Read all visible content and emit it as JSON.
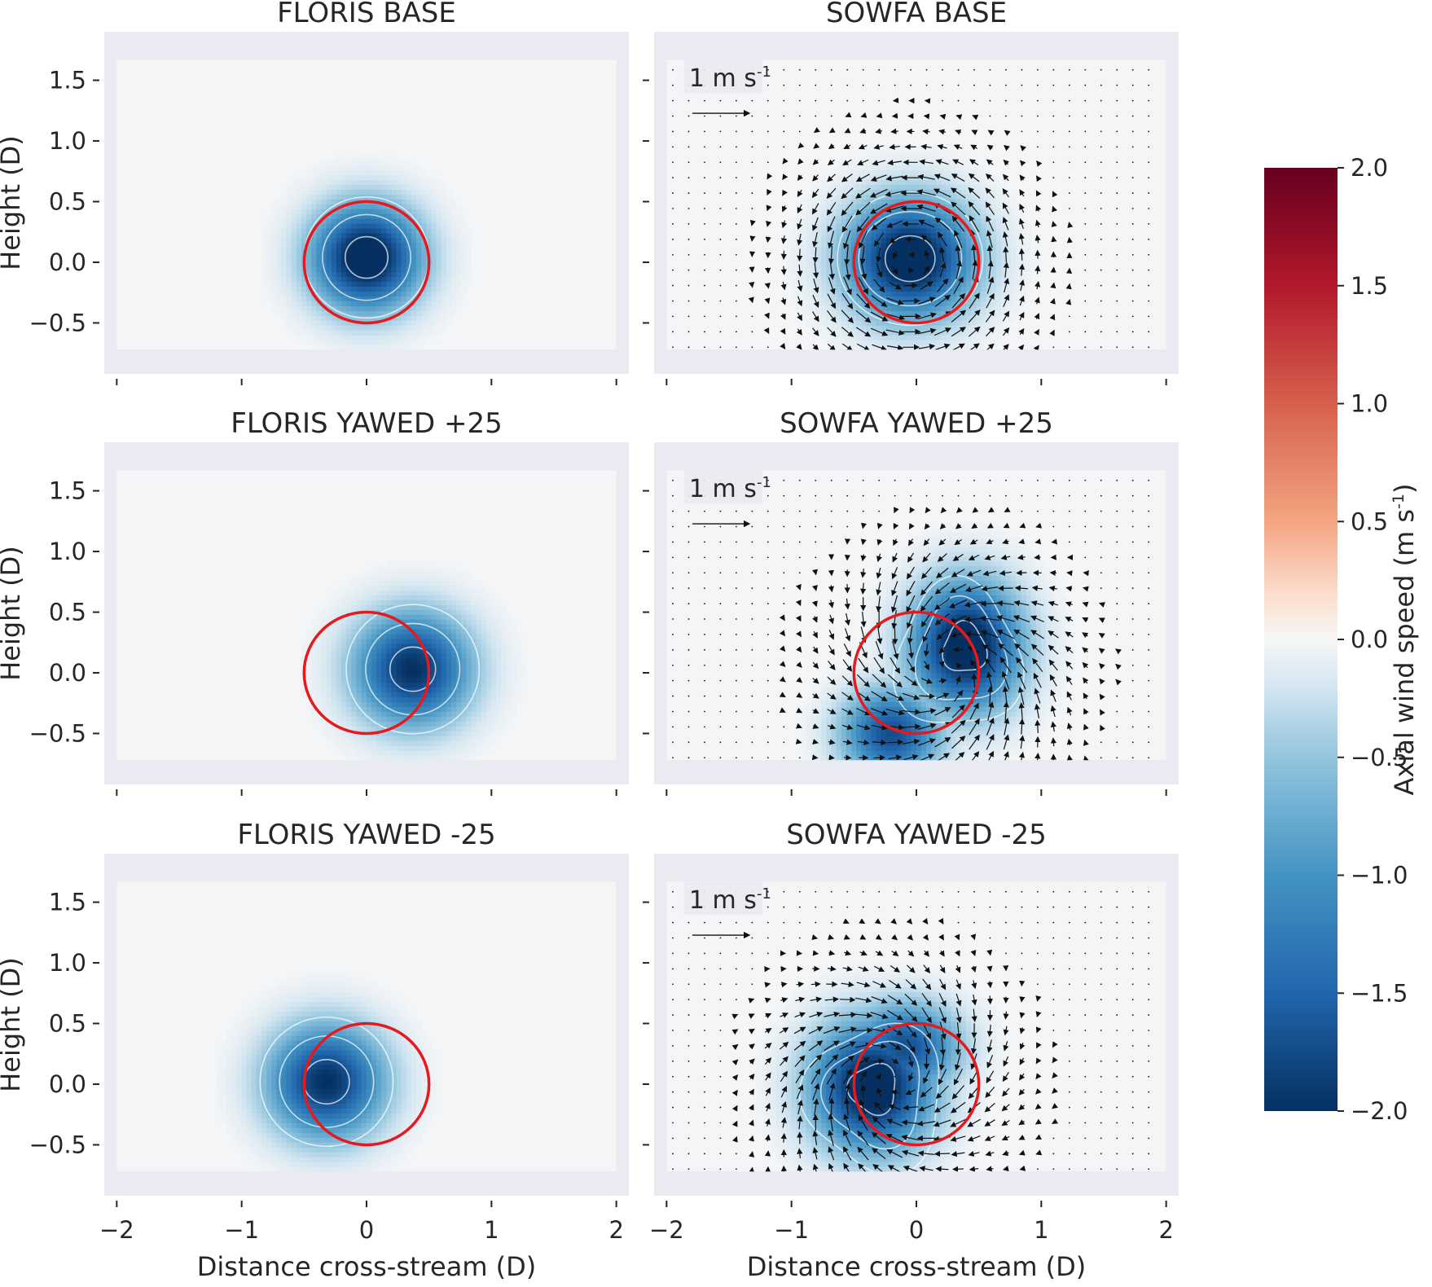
{
  "chart_data": {
    "type": "heatmap",
    "description_free": true,
    "colormap": "RdBu_r",
    "x_range": [
      -2.1,
      2.1
    ],
    "y_range": [
      -0.92,
      1.9
    ],
    "xticks": [
      -2,
      -1,
      0,
      1,
      2
    ],
    "xtick_labels": [
      "−2",
      "−1",
      "0",
      "1",
      "2"
    ],
    "yticks": [
      1.5,
      1.0,
      0.5,
      0.0,
      -0.5
    ],
    "ytick_labels": [
      "1.5",
      "1.0",
      "0.5",
      "0.0",
      "−0.5"
    ],
    "ylabel": "Height (D)",
    "xlabel": "Distance cross-stream (D)",
    "domain_x": [
      -2.0,
      2.0
    ],
    "domain_y": [
      -0.72,
      1.67
    ],
    "rotor_radius": 0.5,
    "contour_fractions": [
      0.25,
      0.5,
      0.85
    ],
    "panels": [
      {
        "id": "floris-base",
        "title": "FLORIS BASE",
        "row": 0,
        "col": 0,
        "rotor_center": [
          0,
          0
        ],
        "wake": {
          "kind": "gauss",
          "cx": 0.0,
          "cy": 0.04,
          "sx": 0.3,
          "sy": 0.3,
          "amp": -2.3,
          "plateau": 0.2
        }
      },
      {
        "id": "sowfa-base",
        "title": "SOWFA BASE",
        "row": 0,
        "col": 1,
        "rotor_center": [
          0,
          0
        ],
        "wake": {
          "kind": "gauss",
          "cx": -0.05,
          "cy": 0.03,
          "sx": 0.35,
          "sy": 0.33,
          "amp": -2.3,
          "plateau": 0.22
        },
        "quiver": {
          "label": "1 m s",
          "label_sup": "-1",
          "swirl": 1.1,
          "swirl_center": [
            -0.05,
            0.02
          ],
          "sink": 0.0
        }
      },
      {
        "id": "floris-yawed-plus25",
        "title": "FLORIS YAWED +25",
        "row": 1,
        "col": 0,
        "rotor_center": [
          0,
          0
        ],
        "wake": {
          "kind": "gauss",
          "cx": 0.37,
          "cy": 0.03,
          "sx": 0.32,
          "sy": 0.32,
          "amp": -2.0,
          "plateau": 0.08
        }
      },
      {
        "id": "sowfa-yawed-plus25",
        "title": "SOWFA YAWED +25",
        "row": 1,
        "col": 1,
        "rotor_center": [
          0,
          0
        ],
        "wake": {
          "kind": "kidney",
          "cx": 0.4,
          "cy": 0.22,
          "sx": 0.3,
          "sy": 0.36,
          "amp": -2.3,
          "tail_cx": -0.2,
          "tail_cy": -0.5,
          "plateau": 0.12
        },
        "quiver": {
          "label": "1 m s",
          "label_sup": "-1",
          "swirl": 0.9,
          "swirl_center": [
            0.25,
            0.05
          ],
          "sink": 0.55
        }
      },
      {
        "id": "floris-yawed-minus25",
        "title": "FLORIS YAWED -25",
        "row": 2,
        "col": 0,
        "rotor_center": [
          0,
          0
        ],
        "wake": {
          "kind": "gauss",
          "cx": -0.32,
          "cy": 0.02,
          "sx": 0.32,
          "sy": 0.32,
          "amp": -2.0,
          "plateau": 0.08
        }
      },
      {
        "id": "sowfa-yawed-minus25",
        "title": "SOWFA YAWED -25",
        "row": 2,
        "col": 1,
        "rotor_center": [
          0,
          0
        ],
        "wake": {
          "kind": "kidney",
          "cx": -0.35,
          "cy": -0.02,
          "sx": 0.33,
          "sy": 0.36,
          "amp": -2.3,
          "tail_cx": -0.1,
          "tail_cy": 0.3,
          "plateau": 0.15
        },
        "quiver": {
          "label": "1 m s",
          "label_sup": "-1",
          "swirl": -0.9,
          "swirl_center": [
            -0.2,
            0.05
          ],
          "sink": 0.45
        }
      }
    ],
    "colorbar": {
      "label": "Axial wind speed (m s",
      "label_sup": "-1",
      "label_close": ")",
      "range": [
        -2.0,
        2.0
      ],
      "ticks": [
        2.0,
        1.5,
        1.0,
        0.5,
        0.0,
        -0.5,
        -1.0,
        -1.5,
        -2.0
      ],
      "tick_labels": [
        "2.0",
        "1.5",
        "1.0",
        "0.5",
        "0.0",
        "−0.5",
        "−1.0",
        "−1.5",
        "−2.0"
      ]
    },
    "colors": {
      "panel_bg": "#eaeaf2",
      "rotor": "#e6191e",
      "contour": "#ffffff",
      "arrow": "#111111",
      "tick": "#262626"
    }
  }
}
